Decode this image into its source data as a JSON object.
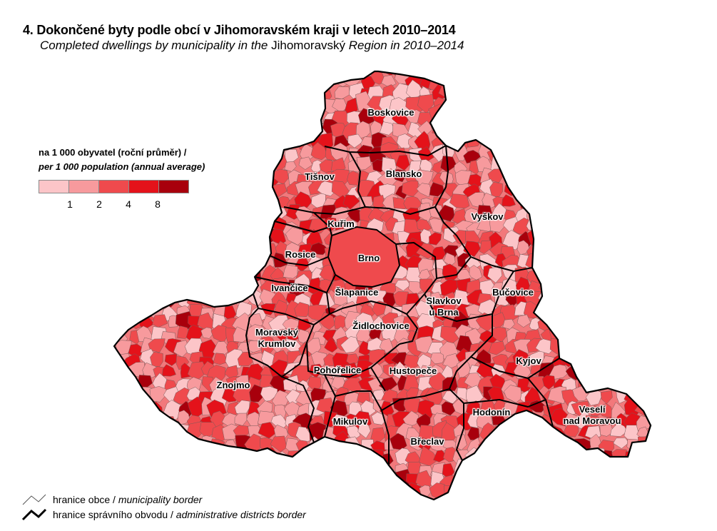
{
  "title": "4. Dokončené byty podle obcí v Jihomoravském kraji v letech 2010–2014",
  "subtitle": {
    "part1": "Completed dwellings by municipality in the",
    "region": "Jihomoravský",
    "part2": "Region in 2010–2014"
  },
  "legend": {
    "title_cz": "na 1 000 obyvatel (roční průměr) /",
    "title_en": "per 1 000 population (annual average)",
    "colors": [
      "#fcc5c8",
      "#f79a9d",
      "#ef4a4d",
      "#e4121a",
      "#a8000c"
    ],
    "ticks": [
      "1",
      "2",
      "4",
      "8"
    ]
  },
  "districts": [
    {
      "name": "Boskovice"
    },
    {
      "name": "Blansko"
    },
    {
      "name": "Tišnov"
    },
    {
      "name": "Kuřim"
    },
    {
      "name": "Vyškov"
    },
    {
      "name": "Rosice"
    },
    {
      "name": "Brno"
    },
    {
      "name": "Ivančice"
    },
    {
      "name": "Šlapanice"
    },
    {
      "name": "Slavkov\nu Brna"
    },
    {
      "name": "Bučovice"
    },
    {
      "name": "Moravský\nKrumlov"
    },
    {
      "name": "Židlochovice"
    },
    {
      "name": "Kyjov"
    },
    {
      "name": "Pohořelice"
    },
    {
      "name": "Hustopeče"
    },
    {
      "name": "Znojmo"
    },
    {
      "name": "Hodonín"
    },
    {
      "name": "Veselí\nnad Moravou"
    },
    {
      "name": "Mikulov"
    },
    {
      "name": "Břeclav"
    }
  ],
  "border_legend": {
    "municipality_cz": "hranice obce /",
    "municipality_en": "municipality border",
    "district_cz": "hranice správního obvodu /",
    "district_en": "administrative districts border"
  }
}
